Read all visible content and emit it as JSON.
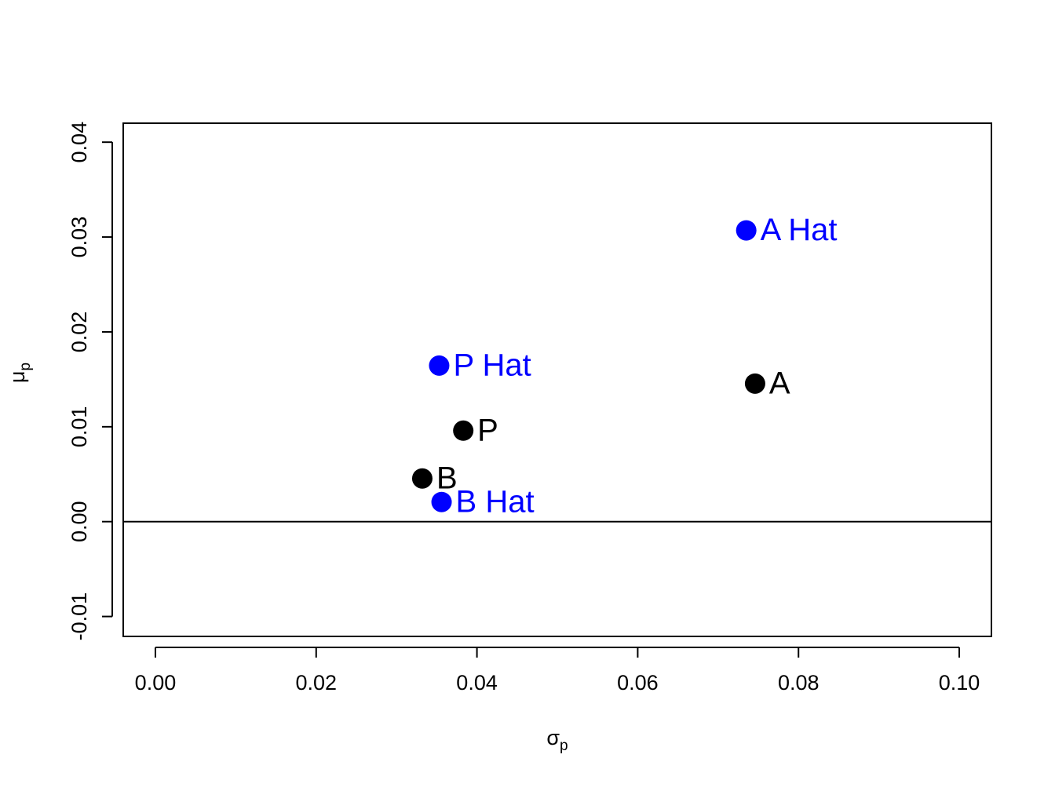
{
  "chart_data": {
    "type": "scatter",
    "x_label": "σ",
    "x_label_subscript": "p",
    "y_label": "μ",
    "y_label_subscript": "p",
    "xlim": [
      -0.004,
      0.104
    ],
    "ylim": [
      -0.0121,
      0.042
    ],
    "xticks": [
      {
        "value": 0,
        "label": "0.00"
      },
      {
        "value": 0.02,
        "label": "0.02"
      },
      {
        "value": 0.04,
        "label": "0.04"
      },
      {
        "value": 0.06,
        "label": "0.06"
      },
      {
        "value": 0.08,
        "label": "0.08"
      },
      {
        "value": 0.1,
        "label": "0.10"
      }
    ],
    "yticks": [
      {
        "value": -0.01,
        "label": "-0.01"
      },
      {
        "value": 0,
        "label": "0.00"
      },
      {
        "value": 0.01,
        "label": "0.01"
      },
      {
        "value": 0.02,
        "label": "0.02"
      },
      {
        "value": 0.03,
        "label": "0.03"
      },
      {
        "value": 0.04,
        "label": "0.04"
      }
    ],
    "hline": 0,
    "series": [
      {
        "color": "#000000",
        "x": [
          0.0746,
          0.0332,
          0.0383
        ],
        "values": [
          0.01455,
          0.00455,
          0.00959
        ],
        "labels": [
          "A",
          "B",
          "P"
        ]
      },
      {
        "color": "#0000ff",
        "x": [
          0.0735,
          0.0356,
          0.0353
        ],
        "values": [
          0.0307,
          0.00207,
          0.01645
        ],
        "labels": [
          "A Hat",
          "B Hat",
          "P Hat"
        ]
      }
    ]
  }
}
